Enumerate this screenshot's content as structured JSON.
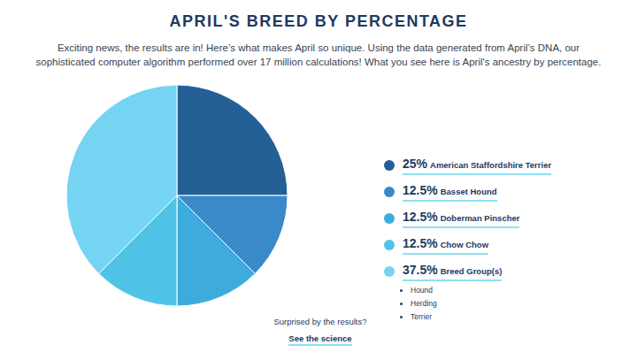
{
  "chart_data": {
    "type": "pie",
    "title": "APRIL'S BREED BY PERCENTAGE",
    "subtitle": "Exciting news, the results are in! Here’s what makes April so unique. Using the data generated from April’s DNA, our sophisticated computer algorithm performed over 17 million calculations! What you see here is April's ancestry by percentage.",
    "categories": [
      "American Staffordshire Terrier",
      "Basset Hound",
      "Doberman Pinscher",
      "Chow Chow",
      "Breed Group(s)"
    ],
    "values": [
      25,
      12.5,
      12.5,
      12.5,
      37.5
    ],
    "value_labels": [
      "25%",
      "12.5%",
      "12.5%",
      "12.5%",
      "37.5%"
    ],
    "category_details": [
      null,
      null,
      null,
      null,
      [
        "Hound",
        "Herding",
        "Terrier"
      ]
    ],
    "colors": [
      "#245f96",
      "#3a89c9",
      "#3eabdd",
      "#50c4e8",
      "#74d4f2"
    ],
    "legend": "right",
    "data_labels": false
  },
  "footer": {
    "text": "Surprised by the results?",
    "link": "See the science"
  }
}
